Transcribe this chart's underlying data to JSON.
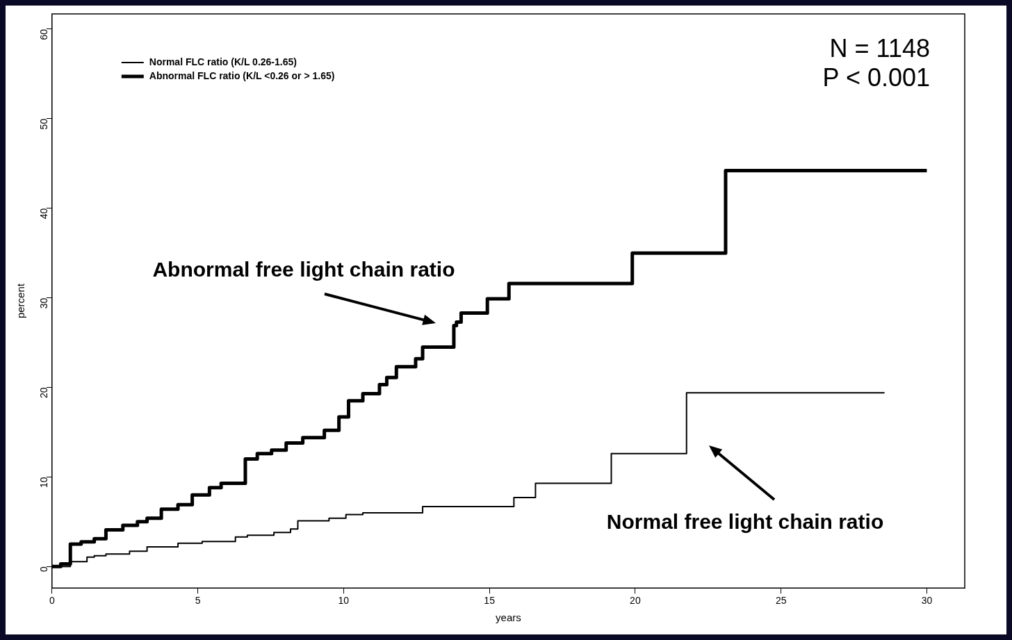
{
  "chart_data": {
    "type": "step",
    "xlabel": "years",
    "ylabel": "percent",
    "xlim": [
      0,
      31.3
    ],
    "ylim": [
      -2.4,
      61.7
    ],
    "xticks": [
      0,
      5,
      10,
      15,
      20,
      25,
      30
    ],
    "yticks": [
      0,
      10,
      20,
      30,
      40,
      50,
      60
    ],
    "grid": false,
    "legend": "top left",
    "marker": "none",
    "line_style": "solid",
    "series": [
      {
        "name": "Normal FLC ratio (K/L 0.26-1.65)",
        "color": "#000000",
        "x": [
          0,
          0.63,
          1.2,
          1.45,
          1.85,
          2.66,
          3.26,
          4.32,
          5.15,
          6.29,
          6.7,
          7.61,
          8.18,
          8.43,
          9.5,
          10.08,
          10.66,
          12.71,
          15.84,
          16.58,
          19.18,
          21.76,
          28.55
        ],
        "values": [
          0,
          0.55,
          1.05,
          1.2,
          1.4,
          1.7,
          2.2,
          2.6,
          2.8,
          3.3,
          3.5,
          3.8,
          4.2,
          5.1,
          5.4,
          5.8,
          6,
          6.7,
          7.7,
          9.3,
          12.6,
          19.4,
          19.4
        ]
      },
      {
        "name": "Abnormal FLC ratio (K/L <0.26 or > 1.65)",
        "color": "#000000",
        "x": [
          0,
          0.3,
          0.63,
          1,
          1.45,
          1.85,
          2.43,
          2.93,
          3.26,
          3.75,
          4.32,
          4.81,
          5.4,
          5.8,
          6.63,
          7.04,
          7.53,
          8.03,
          8.6,
          9.34,
          9.84,
          10.17,
          10.66,
          11.23,
          11.48,
          11.81,
          12.47,
          12.71,
          13.78,
          13.87,
          14.03,
          14.93,
          15.67,
          19.9,
          23.1,
          30
        ],
        "values": [
          0,
          0.3,
          2.5,
          2.75,
          3.1,
          4.1,
          4.6,
          5,
          5.4,
          6.4,
          6.9,
          8,
          8.8,
          9.3,
          12,
          12.6,
          13,
          13.8,
          14.4,
          15.2,
          16.7,
          18.5,
          19.3,
          20.3,
          21.1,
          22.3,
          23.2,
          24.5,
          26.9,
          27.3,
          28.3,
          29.9,
          31.6,
          35,
          44.2,
          44.2
        ]
      }
    ],
    "annotations": [
      "N = 1148",
      "P < 0.001",
      {
        "text": "Abnormal free light chain ratio",
        "x": 13.78,
        "y": 26
      },
      "Normal free light chain ratio"
    ]
  }
}
